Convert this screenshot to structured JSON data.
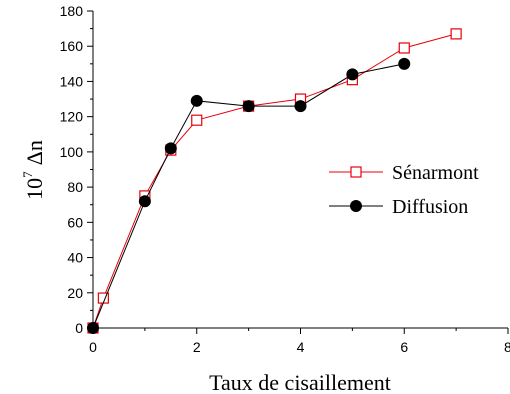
{
  "chart_data": {
    "type": "line",
    "xlabel": "Taux de cisaillement",
    "ylabel_prefix": "10",
    "ylabel_exponent": "7",
    "ylabel_symbol": "Δn",
    "xlim": [
      0,
      8
    ],
    "ylim": [
      0,
      180
    ],
    "x_ticks": [
      0,
      2,
      4,
      6,
      8
    ],
    "y_ticks": [
      0,
      20,
      40,
      60,
      80,
      100,
      120,
      140,
      160,
      180
    ],
    "x_tick_labels": [
      "0",
      "2",
      "4",
      "6",
      "8"
    ],
    "y_tick_labels": [
      "0",
      "20",
      "40",
      "60",
      "80",
      "100",
      "120",
      "140",
      "160",
      "180"
    ],
    "grid": false,
    "legend_position": "right",
    "series": [
      {
        "name": "Sénarmont",
        "marker": "open-square",
        "color": "#e8000b",
        "x": [
          0,
          0.2,
          1,
          1.5,
          2,
          3,
          4,
          5,
          6,
          7
        ],
        "y": [
          0,
          17,
          75,
          101,
          118,
          126,
          130,
          141,
          159,
          167
        ]
      },
      {
        "name": "Diffusion",
        "marker": "filled-circle",
        "color": "#000000",
        "x": [
          0,
          1,
          1.5,
          2,
          3,
          4,
          5,
          6
        ],
        "y": [
          0,
          72,
          102,
          129,
          126,
          126,
          144,
          150
        ]
      }
    ]
  }
}
